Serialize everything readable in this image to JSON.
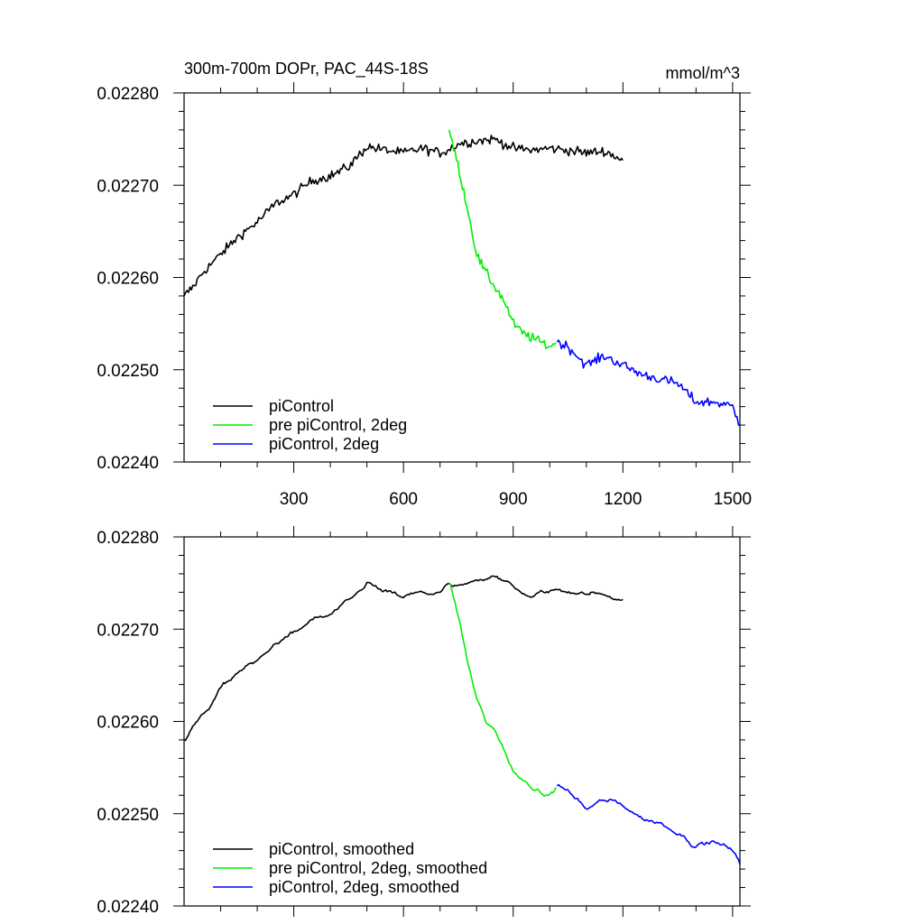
{
  "chart_data": [
    {
      "type": "line",
      "title": "300m-700m DOPr, PAC_44S-18S",
      "units": "mmol/m^3",
      "xlabel": "",
      "ylabel": "",
      "xlim": [
        0,
        1520
      ],
      "ylim": [
        0.0224,
        0.0228
      ],
      "xticks": [
        300,
        600,
        900,
        1200,
        1500
      ],
      "xtick_labels": [
        "300",
        "600",
        "900",
        "1200",
        "1500"
      ],
      "yticks": [
        0.0224,
        0.0225,
        0.0226,
        0.0227,
        0.0228
      ],
      "ytick_labels": [
        "0.02240",
        "0.02250",
        "0.02260",
        "0.02270",
        "0.02280"
      ],
      "grid": false,
      "legend_position": "bottom-left",
      "series": [
        {
          "name": "piControl",
          "color": "#000000",
          "x": [
            0,
            25,
            50,
            75,
            100,
            150,
            200,
            250,
            300,
            350,
            400,
            450,
            500,
            550,
            600,
            650,
            700,
            720,
            750,
            800,
            850,
            900,
            950,
            1000,
            1050,
            1100,
            1150,
            1200
          ],
          "y": [
            0.02258,
            0.02259,
            0.022605,
            0.022615,
            0.022625,
            0.022645,
            0.02266,
            0.02268,
            0.02269,
            0.022705,
            0.02271,
            0.02272,
            0.022742,
            0.022738,
            0.022735,
            0.02274,
            0.022735,
            0.022738,
            0.022745,
            0.022748,
            0.02275,
            0.02274,
            0.022738,
            0.02274,
            0.022738,
            0.022735,
            0.022737,
            0.022727
          ]
        },
        {
          "name": "pre piControl, 2deg",
          "color": "#00ee00",
          "x": [
            725,
            750,
            775,
            800,
            825,
            850,
            875,
            900,
            925,
            950,
            975,
            1000,
            1020
          ],
          "y": [
            0.02276,
            0.02272,
            0.022675,
            0.022625,
            0.022605,
            0.02259,
            0.022575,
            0.02255,
            0.02254,
            0.022535,
            0.02253,
            0.022525,
            0.02253
          ]
        },
        {
          "name": "piControl, 2deg",
          "color": "#0000ff",
          "x": [
            1020,
            1050,
            1100,
            1150,
            1200,
            1250,
            1300,
            1350,
            1400,
            1450,
            1500,
            1520
          ],
          "y": [
            0.02253,
            0.022525,
            0.022505,
            0.022515,
            0.022505,
            0.022495,
            0.02249,
            0.022485,
            0.022465,
            0.022465,
            0.02246,
            0.02244
          ]
        }
      ]
    },
    {
      "type": "line",
      "title": "",
      "xlabel": "",
      "ylabel": "",
      "xlim": [
        0,
        1520
      ],
      "ylim": [
        0.0224,
        0.0228
      ],
      "yticks": [
        0.0224,
        0.0225,
        0.0226,
        0.0227,
        0.0228
      ],
      "ytick_labels": [
        "0.02240",
        "0.02250",
        "0.02260",
        "0.02270",
        "0.02280"
      ],
      "grid": false,
      "legend_position": "bottom-left",
      "series": [
        {
          "name": "piControl, smoothed",
          "color": "#000000",
          "x": [
            0,
            25,
            50,
            75,
            100,
            150,
            200,
            250,
            300,
            350,
            400,
            450,
            500,
            550,
            600,
            650,
            700,
            720,
            750,
            800,
            850,
            900,
            950,
            1000,
            1050,
            1100,
            1150,
            1200
          ],
          "y": [
            0.02258,
            0.022595,
            0.022605,
            0.02262,
            0.022635,
            0.022655,
            0.022665,
            0.022685,
            0.022695,
            0.02271,
            0.022715,
            0.02273,
            0.02275,
            0.02274,
            0.022735,
            0.02274,
            0.022738,
            0.022748,
            0.022745,
            0.022752,
            0.02276,
            0.022745,
            0.022735,
            0.022742,
            0.022742,
            0.022738,
            0.022738,
            0.022732
          ]
        },
        {
          "name": "pre piControl, 2deg, smoothed",
          "color": "#00ee00",
          "x": [
            725,
            750,
            775,
            800,
            825,
            850,
            875,
            900,
            925,
            950,
            975,
            1000,
            1020
          ],
          "y": [
            0.02275,
            0.022715,
            0.022665,
            0.022625,
            0.0226,
            0.02259,
            0.02257,
            0.022545,
            0.022535,
            0.02253,
            0.02252,
            0.02252,
            0.02253
          ]
        },
        {
          "name": "piControl, 2deg, smoothed",
          "color": "#0000ff",
          "x": [
            1020,
            1050,
            1100,
            1150,
            1200,
            1250,
            1300,
            1350,
            1400,
            1450,
            1500,
            1520
          ],
          "y": [
            0.02253,
            0.022525,
            0.022505,
            0.022515,
            0.02251,
            0.022495,
            0.02249,
            0.02248,
            0.022465,
            0.02247,
            0.02246,
            0.022445
          ]
        }
      ]
    }
  ]
}
